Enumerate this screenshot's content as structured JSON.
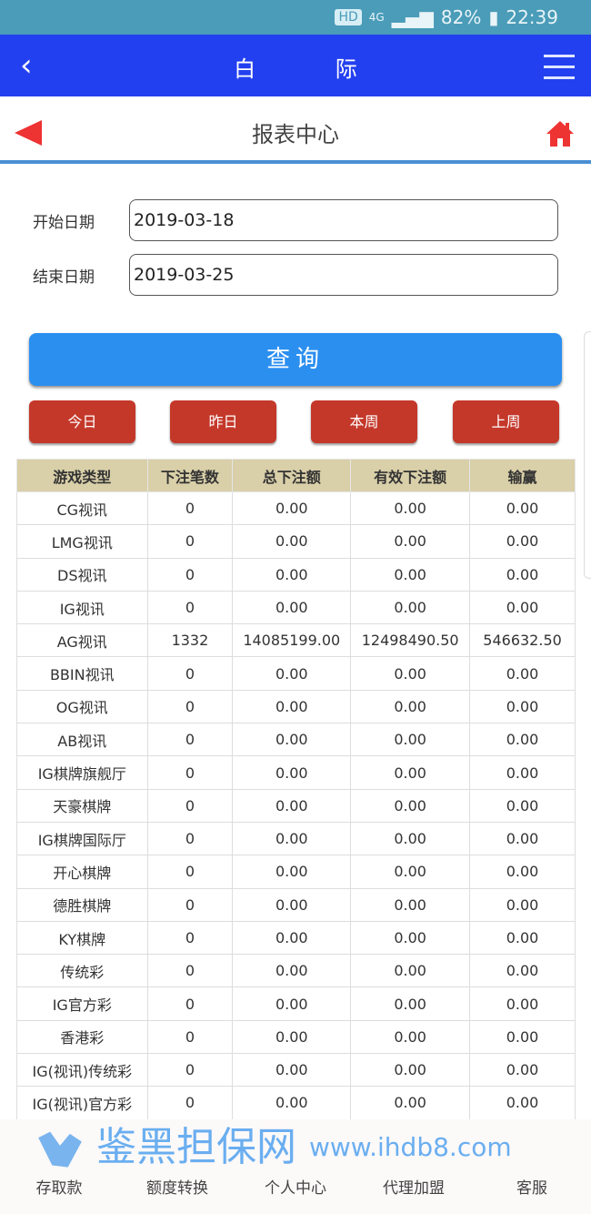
{
  "status_bar": {
    "battery": "82%",
    "time": "22:39",
    "hd": "HD",
    "network": "4G"
  },
  "topbar": {
    "title": "白 际"
  },
  "subbar": {
    "title": "报表中心"
  },
  "form": {
    "start_label": "开始日期",
    "start_value": "2019-03-18",
    "end_label": "结束日期",
    "end_value": "2019-03-25"
  },
  "query_label": "查询",
  "quick": [
    "今日",
    "昨日",
    "本周",
    "上周"
  ],
  "table": {
    "headers": [
      "游戏类型",
      "下注笔数",
      "总下注额",
      "有效下注额",
      "输赢"
    ],
    "rows": [
      [
        "CG视讯",
        "0",
        "0.00",
        "0.00",
        "0.00"
      ],
      [
        "LMG视讯",
        "0",
        "0.00",
        "0.00",
        "0.00"
      ],
      [
        "DS视讯",
        "0",
        "0.00",
        "0.00",
        "0.00"
      ],
      [
        "IG视讯",
        "0",
        "0.00",
        "0.00",
        "0.00"
      ],
      [
        "AG视讯",
        "1332",
        "14085199.00",
        "12498490.50",
        "546632.50"
      ],
      [
        "BBIN视讯",
        "0",
        "0.00",
        "0.00",
        "0.00"
      ],
      [
        "OG视讯",
        "0",
        "0.00",
        "0.00",
        "0.00"
      ],
      [
        "AB视讯",
        "0",
        "0.00",
        "0.00",
        "0.00"
      ],
      [
        "IG棋牌旗舰厅",
        "0",
        "0.00",
        "0.00",
        "0.00"
      ],
      [
        "天豪棋牌",
        "0",
        "0.00",
        "0.00",
        "0.00"
      ],
      [
        "IG棋牌国际厅",
        "0",
        "0.00",
        "0.00",
        "0.00"
      ],
      [
        "开心棋牌",
        "0",
        "0.00",
        "0.00",
        "0.00"
      ],
      [
        "德胜棋牌",
        "0",
        "0.00",
        "0.00",
        "0.00"
      ],
      [
        "KY棋牌",
        "0",
        "0.00",
        "0.00",
        "0.00"
      ],
      [
        "传统彩",
        "0",
        "0.00",
        "0.00",
        "0.00"
      ],
      [
        "IG官方彩",
        "0",
        "0.00",
        "0.00",
        "0.00"
      ],
      [
        "香港彩",
        "0",
        "0.00",
        "0.00",
        "0.00"
      ],
      [
        "IG(视讯)传统彩",
        "0",
        "0.00",
        "0.00",
        "0.00"
      ],
      [
        "IG(视讯)官方彩",
        "0",
        "0.00",
        "0.00",
        "0.00"
      ]
    ]
  },
  "watermark": {
    "cn": "鉴黑担保网",
    "url": "www.ihdb8.com"
  },
  "bottom_nav": [
    "存取款",
    "额度转换",
    "个人中心",
    "代理加盟",
    "客服"
  ],
  "colors": {
    "topbar": "#2340f0",
    "query": "#2b8ff0",
    "quick": "#c4382a",
    "table_header": "#d9cfa8",
    "accent_red": "#e33333"
  }
}
